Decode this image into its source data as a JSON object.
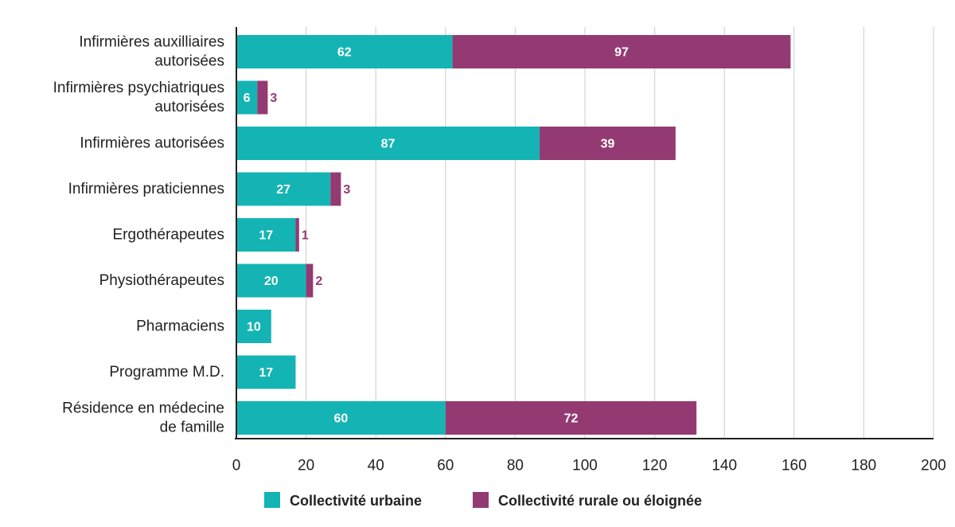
{
  "chart_data": {
    "type": "bar",
    "orientation": "horizontal",
    "stacked": true,
    "categories": [
      [
        "Infirmières auxilliaires",
        "autorisées"
      ],
      [
        "Infirmières psychiatriques",
        "autorisées"
      ],
      [
        "Infirmières autorisées"
      ],
      [
        "Infirmières praticiennes"
      ],
      [
        "Ergothérapeutes"
      ],
      [
        "Physiothérapeutes"
      ],
      [
        "Pharmaciens"
      ],
      [
        "Programme M.D."
      ],
      [
        "Résidence en médecine",
        "de famille"
      ]
    ],
    "series": [
      {
        "name": "Collectivité urbaine",
        "color": "#14b4b4",
        "values": [
          62,
          6,
          87,
          27,
          17,
          20,
          10,
          17,
          60
        ]
      },
      {
        "name": "Collectivité rurale ou éloignée",
        "color": "#943a72",
        "values": [
          97,
          3,
          39,
          3,
          1,
          2,
          0,
          0,
          72
        ]
      }
    ],
    "xlim": [
      0,
      200
    ],
    "xticks": [
      0,
      20,
      40,
      60,
      80,
      100,
      120,
      140,
      160,
      180,
      200
    ],
    "grid": "vertical",
    "legend": "bottom",
    "title": "",
    "xlabel": "",
    "ylabel": ""
  }
}
